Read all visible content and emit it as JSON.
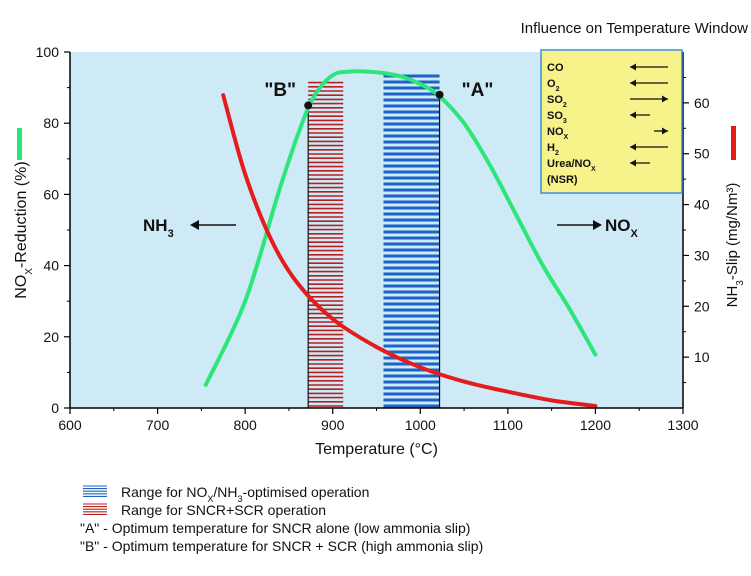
{
  "chart_data": {
    "type": "line",
    "header_title": "Influence on Temperature Window",
    "x_axis": {
      "label": "Temperature (°C)",
      "range": [
        600,
        1300
      ],
      "ticks": [
        600,
        700,
        800,
        900,
        1000,
        1100,
        1200,
        1300
      ]
    },
    "y_left": {
      "label_main": "NO",
      "label_sub": "X",
      "label_rest": "-Reduction  (%)",
      "range": [
        0,
        100
      ],
      "ticks": [
        0,
        20,
        40,
        60,
        80,
        100
      ]
    },
    "y_right": {
      "label_main": "NH",
      "label_sub": "3",
      "label_rest": "-Slip  (mg/Nm³)",
      "range": [
        0,
        70
      ],
      "ticks": [
        10,
        20,
        30,
        40,
        50,
        60
      ]
    },
    "series": [
      {
        "key": "nox",
        "axis": "left",
        "color": "#2ee57a",
        "x": [
          755,
          800,
          840,
          865,
          880,
          900,
          920,
          940,
          960,
          980,
          1000,
          1020,
          1050,
          1080,
          1110,
          1140,
          1170,
          1200
        ],
        "y": [
          6.5,
          30,
          62,
          80,
          88,
          93.5,
          94.5,
          94.5,
          94,
          93,
          91,
          88,
          80,
          68,
          54,
          40,
          28,
          15
        ]
      },
      {
        "key": "nh3",
        "axis": "right",
        "color": "#e51c1c",
        "x": [
          775,
          800,
          830,
          860,
          900,
          950,
          1000,
          1050,
          1100,
          1150,
          1200
        ],
        "y": [
          61.5,
          46,
          33,
          24.5,
          17.5,
          12,
          8,
          5.2,
          3.2,
          1.5,
          0.4
        ]
      }
    ],
    "hatched_regions": [
      {
        "key": "blue",
        "x_from": 958,
        "x_to": 1022,
        "y_top_left": 94,
        "color": "#1b63c4"
      },
      {
        "key": "red",
        "x_from": 872,
        "x_to": 912,
        "y_top_left": 92,
        "color": "#b52020"
      }
    ],
    "markers": [
      {
        "label": "\"A\"",
        "x": 1022,
        "y": 88
      },
      {
        "label": "\"B\"",
        "x": 872,
        "y": 85
      }
    ],
    "annotations": [
      {
        "key": "nh3-arrow",
        "text_main": "NH",
        "text_sub": "3",
        "direction": "left"
      },
      {
        "key": "nox-arrow",
        "text_main": "NO",
        "text_sub": "X",
        "direction": "right"
      }
    ],
    "influence_box": {
      "background": "#f7f28a",
      "rows": [
        {
          "main": "CO",
          "sub": "",
          "arrow": "left-long"
        },
        {
          "main": "O",
          "sub": "2",
          "arrow": "left-long"
        },
        {
          "main": "SO",
          "sub": "2",
          "arrow": "right-long"
        },
        {
          "main": "SO",
          "sub": "3",
          "arrow": "left-short"
        },
        {
          "main": "NO",
          "sub": "X",
          "arrow": "right-short"
        },
        {
          "main": "H",
          "sub": "2",
          "arrow": "left-long"
        },
        {
          "main": "Urea/NO",
          "sub": "X",
          "arrow": "left-short"
        },
        {
          "main": "(NSR)",
          "sub": "",
          "arrow": "none"
        }
      ]
    },
    "legend": [
      {
        "swatch": "blue",
        "text_main": "Range for NO",
        "text_sub": "X",
        "text_rest": "/NH",
        "text_sub2": "3",
        "text_end": "-optimised operation"
      },
      {
        "swatch": "red",
        "text_main": "Range for SNCR+SCR operation",
        "text_sub": "",
        "text_rest": "",
        "text_sub2": "",
        "text_end": ""
      },
      {
        "swatch": "none",
        "text_main": "\"A\" - Optimum temperature for SNCR alone (low ammonia slip)",
        "text_sub": "",
        "text_rest": "",
        "text_sub2": "",
        "text_end": ""
      },
      {
        "swatch": "none",
        "text_main": "\"B\" - Optimum temperature for SNCR  + SCR (high ammonia slip)",
        "text_sub": "",
        "text_rest": "",
        "text_sub2": "",
        "text_end": ""
      }
    ],
    "colors": {
      "plot_background": "#cfeaf7",
      "axis": "#000000",
      "left_axis_marker": "#2ee57a",
      "right_axis_marker": "#e51c1c"
    },
    "grid": false
  }
}
